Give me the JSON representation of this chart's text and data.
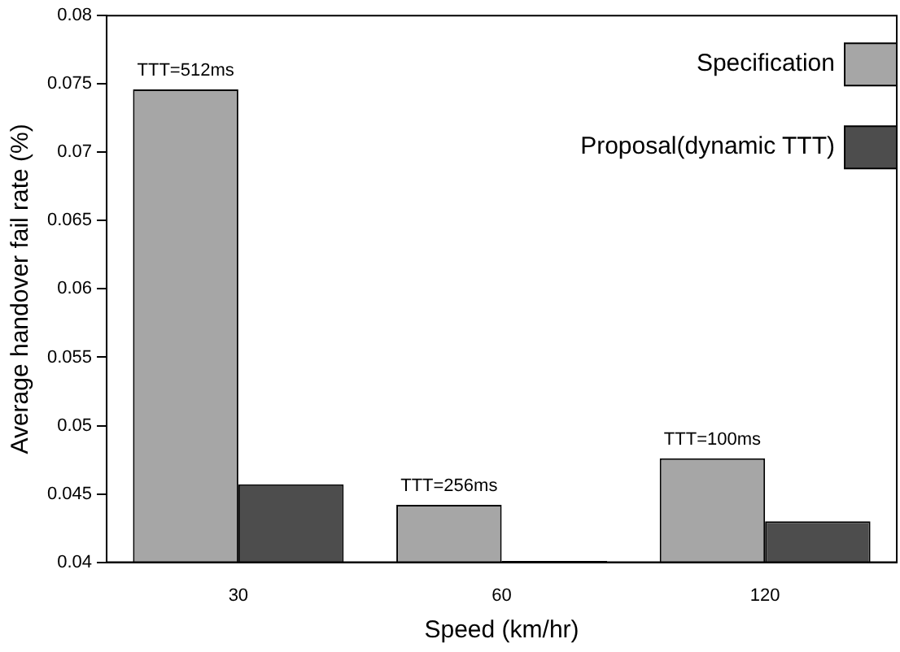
{
  "chart_data": {
    "type": "bar",
    "xlabel": "Speed (km/hr)",
    "ylabel": "Average handover fail rate (%)",
    "categories": [
      "30",
      "60",
      "120"
    ],
    "series": [
      {
        "name": "Specification",
        "color": "#a6a6a6",
        "values": [
          0.0746,
          0.0442,
          0.0476
        ]
      },
      {
        "name": "Proposal(dynamic TTT)",
        "color": "#4d4d4d",
        "values": [
          0.0457,
          0.0401,
          0.043
        ]
      }
    ],
    "ylim": [
      0.04,
      0.08
    ],
    "yticks": [
      0.04,
      0.045,
      0.05,
      0.055,
      0.06,
      0.065,
      0.07,
      0.075,
      0.08
    ],
    "grid": false,
    "legend": "top right",
    "annotations": [
      {
        "text": "TTT=512ms",
        "x": "30",
        "y": 0.0746
      },
      {
        "text": "TTT=256ms",
        "x": "60",
        "y": 0.0442
      },
      {
        "text": "TTT=100ms",
        "x": "120",
        "y": 0.0476
      }
    ]
  }
}
